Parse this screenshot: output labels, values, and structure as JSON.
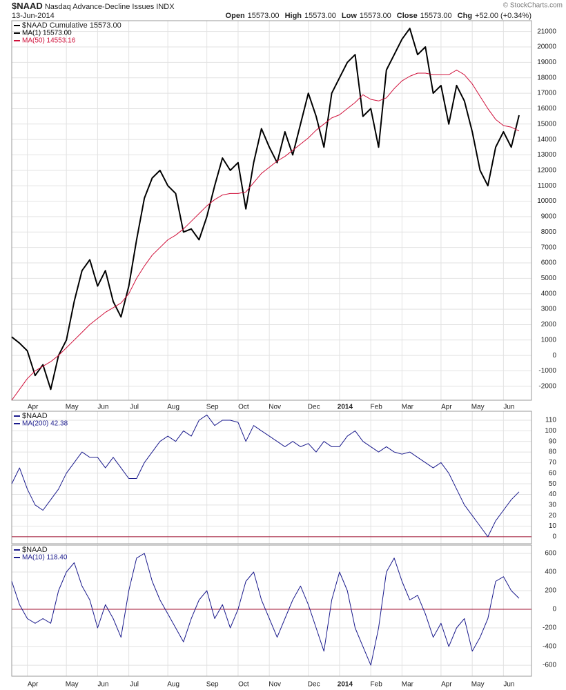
{
  "chart_data": [
    {
      "type": "line",
      "title": "$NAAD",
      "subtitle": "Nasdaq Advance-Decline Issues INDX",
      "date": "13-Jun-2014",
      "source": "© StockCharts.com",
      "quote": [
        {
          "label": "Open",
          "value": "15573.00"
        },
        {
          "label": "High",
          "value": "15573.00"
        },
        {
          "label": "Low",
          "value": "15573.00"
        },
        {
          "label": "Close",
          "value": "15573.00"
        },
        {
          "label": "Chg",
          "value": "+52.00 (+0.34%)"
        }
      ],
      "legend_title": "$NAAD Cumulative 15573.00",
      "categories": [
        null,
        null,
        "Apr",
        null,
        null,
        null,
        null,
        "May",
        null,
        null,
        null,
        "Jun",
        null,
        null,
        null,
        "Jul",
        null,
        null,
        null,
        null,
        "Aug",
        null,
        null,
        null,
        null,
        "Sep",
        null,
        null,
        null,
        "Oct",
        null,
        null,
        null,
        "Nov",
        null,
        null,
        null,
        null,
        "Dec",
        null,
        null,
        null,
        "2014",
        null,
        null,
        null,
        "Feb",
        null,
        null,
        null,
        "Mar",
        null,
        null,
        null,
        null,
        "Apr",
        null,
        null,
        null,
        "May",
        null,
        null,
        null,
        "Jun",
        null,
        null
      ],
      "series": [
        {
          "name": "MA(1) 15573.00",
          "color": "#000000",
          "width": 2,
          "values": [
            1200,
            800,
            300,
            -1300,
            -600,
            -2200,
            0,
            1000,
            3500,
            5500,
            6200,
            4500,
            5500,
            3500,
            2500,
            4500,
            7500,
            10200,
            11500,
            12000,
            11000,
            10500,
            8000,
            8200,
            7500,
            9000,
            11000,
            12800,
            12000,
            12500,
            9500,
            12500,
            14700,
            13500,
            12500,
            14500,
            13000,
            15000,
            17000,
            15500,
            13500,
            17000,
            18000,
            19000,
            19500,
            15500,
            16000,
            13500,
            18500,
            19500,
            20500,
            21200,
            19500,
            20000,
            17000,
            17500,
            15000,
            17500,
            16500,
            14500,
            12000,
            11000,
            13500,
            14500,
            13500,
            15573
          ]
        },
        {
          "name": "MA(50) 14553.16",
          "color": "#d0103a",
          "width": 1,
          "values": [
            -2900,
            -2200,
            -1500,
            -1000,
            -700,
            -400,
            0,
            500,
            1000,
            1500,
            2000,
            2400,
            2800,
            3100,
            3400,
            4000,
            5000,
            5800,
            6500,
            7000,
            7500,
            7800,
            8200,
            8700,
            9200,
            9700,
            10100,
            10400,
            10500,
            10500,
            10600,
            11200,
            11800,
            12200,
            12600,
            12900,
            13300,
            13700,
            14100,
            14600,
            15000,
            15400,
            15600,
            16000,
            16400,
            16900,
            16600,
            16500,
            16700,
            17300,
            17800,
            18100,
            18300,
            18300,
            18200,
            18200,
            18200,
            18500,
            18200,
            17600,
            16800,
            16000,
            15300,
            14900,
            14800,
            14553.16
          ]
        }
      ],
      "ylim": [
        -2900,
        21700
      ],
      "yticks": [
        -2000,
        -1000,
        0,
        1000,
        2000,
        3000,
        4000,
        5000,
        6000,
        7000,
        8000,
        9000,
        10000,
        11000,
        12000,
        13000,
        14000,
        15000,
        16000,
        17000,
        18000,
        19000,
        20000,
        21000
      ],
      "grid": true
    },
    {
      "type": "line",
      "legend_title": "$NAAD",
      "series": [
        {
          "name": "MA(200) 42.38",
          "color": "#1a1a8c",
          "width": 1,
          "values": [
            50,
            65,
            45,
            30,
            25,
            35,
            45,
            60,
            70,
            80,
            75,
            75,
            65,
            75,
            65,
            55,
            55,
            70,
            80,
            90,
            95,
            90,
            100,
            95,
            110,
            115,
            105,
            110,
            110,
            108,
            90,
            105,
            100,
            95,
            90,
            85,
            90,
            85,
            88,
            80,
            90,
            85,
            85,
            95,
            100,
            90,
            85,
            80,
            85,
            80,
            78,
            80,
            75,
            70,
            65,
            70,
            60,
            45,
            30,
            20,
            10,
            0,
            15,
            25,
            35,
            42.38
          ]
        }
      ],
      "ylim": [
        -6.6,
        118.5
      ],
      "yticks": [
        0,
        10,
        20,
        30,
        40,
        50,
        60,
        70,
        80,
        90,
        100,
        110
      ],
      "hline": 0,
      "hline_color": "#a01030",
      "grid": true
    },
    {
      "type": "line",
      "legend_title": "$NAAD",
      "categories": [
        null,
        null,
        "Apr",
        null,
        null,
        null,
        null,
        "May",
        null,
        null,
        null,
        "Jun",
        null,
        null,
        null,
        "Jul",
        null,
        null,
        null,
        null,
        "Aug",
        null,
        null,
        null,
        null,
        "Sep",
        null,
        null,
        null,
        "Oct",
        null,
        null,
        null,
        "Nov",
        null,
        null,
        null,
        null,
        "Dec",
        null,
        null,
        null,
        "2014",
        null,
        null,
        null,
        "Feb",
        null,
        null,
        null,
        "Mar",
        null,
        null,
        null,
        null,
        "Apr",
        null,
        null,
        null,
        "May",
        null,
        null,
        null,
        "Jun",
        null,
        null
      ],
      "series": [
        {
          "name": "MA(10) 118.40",
          "color": "#1a1a8c",
          "width": 1,
          "values": [
            300,
            50,
            -100,
            -150,
            -100,
            -150,
            200,
            400,
            500,
            250,
            100,
            -200,
            50,
            -100,
            -300,
            200,
            550,
            600,
            300,
            100,
            -50,
            -200,
            -350,
            -100,
            100,
            200,
            -100,
            50,
            -200,
            0,
            300,
            400,
            100,
            -100,
            -300,
            -100,
            100,
            250,
            50,
            -200,
            -450,
            100,
            400,
            200,
            -200,
            -400,
            -600,
            -200,
            400,
            550,
            300,
            100,
            150,
            -50,
            -300,
            -150,
            -400,
            -200,
            -100,
            -450,
            -300,
            -100,
            300,
            350,
            200,
            118.4
          ]
        }
      ],
      "ylim": [
        -718,
        689
      ],
      "yticks": [
        -600,
        -400,
        -200,
        0,
        200,
        400,
        600
      ],
      "hline": 0,
      "hline_color": "#a01030",
      "grid": true
    }
  ]
}
